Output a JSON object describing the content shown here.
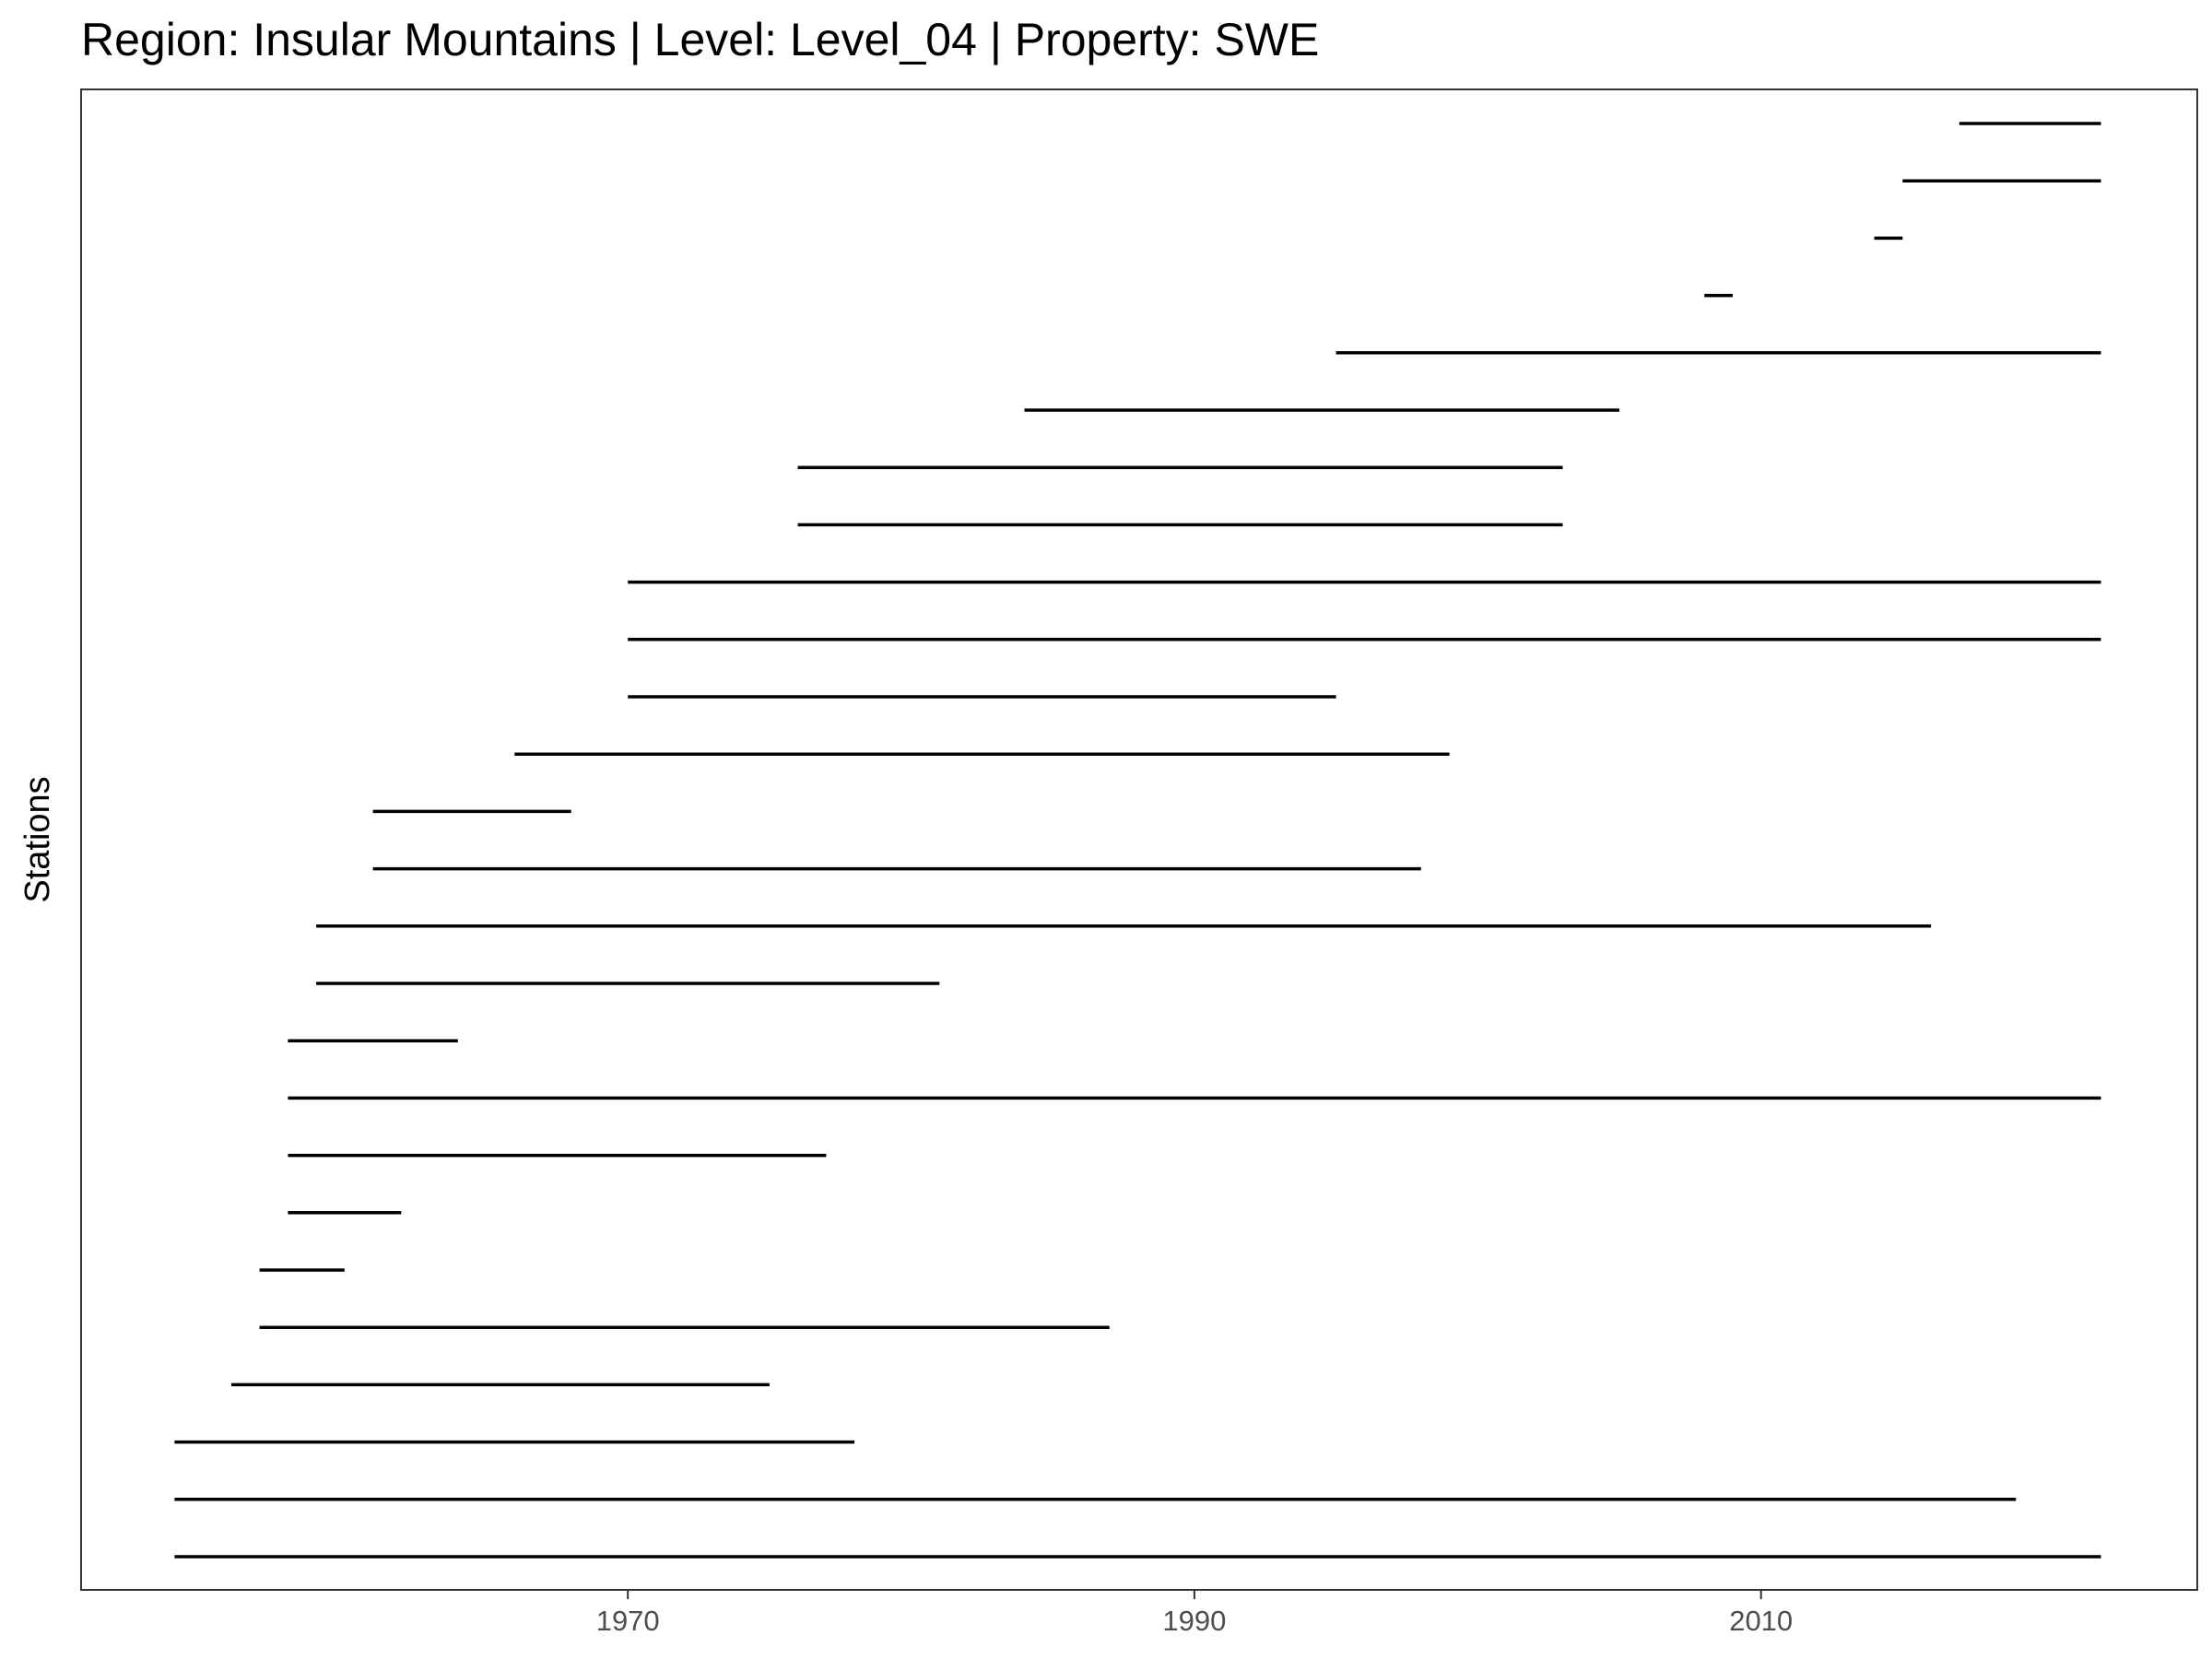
{
  "chart_data": {
    "type": "timeline",
    "title": "Region: Insular Mountains | Level: Level_04 | Property: SWE",
    "xlabel": "",
    "ylabel": "Stations",
    "x_ticks": [
      1970,
      1990,
      2010
    ],
    "xlim": [
      1950.7,
      2025.4
    ],
    "grid": false,
    "legend": "none",
    "line_color": "#000000",
    "series": [
      {
        "start": 1954.0,
        "end": 2022.0
      },
      {
        "start": 1954.0,
        "end": 2019.0
      },
      {
        "start": 1954.0,
        "end": 1978.0
      },
      {
        "start": 1956.0,
        "end": 1975.0
      },
      {
        "start": 1957.0,
        "end": 1987.0
      },
      {
        "start": 1957.0,
        "end": 1960.0
      },
      {
        "start": 1958.0,
        "end": 1962.0
      },
      {
        "start": 1958.0,
        "end": 1977.0
      },
      {
        "start": 1958.0,
        "end": 2022.0
      },
      {
        "start": 1958.0,
        "end": 1964.0
      },
      {
        "start": 1959.0,
        "end": 1981.0
      },
      {
        "start": 1959.0,
        "end": 2016.0
      },
      {
        "start": 1961.0,
        "end": 1998.0
      },
      {
        "start": 1961.0,
        "end": 1968.0
      },
      {
        "start": 1966.0,
        "end": 1999.0
      },
      {
        "start": 1970.0,
        "end": 1995.0
      },
      {
        "start": 1970.0,
        "end": 2022.0
      },
      {
        "start": 1970.0,
        "end": 2022.0
      },
      {
        "start": 1976.0,
        "end": 2003.0
      },
      {
        "start": 1976.0,
        "end": 2003.0
      },
      {
        "start": 1984.0,
        "end": 2005.0
      },
      {
        "start": 1995.0,
        "end": 2022.0
      },
      {
        "start": 2008.0,
        "end": 2009.0
      },
      {
        "start": 2014.0,
        "end": 2015.0
      },
      {
        "start": 2015.0,
        "end": 2022.0
      },
      {
        "start": 2017.0,
        "end": 2022.0
      }
    ]
  }
}
